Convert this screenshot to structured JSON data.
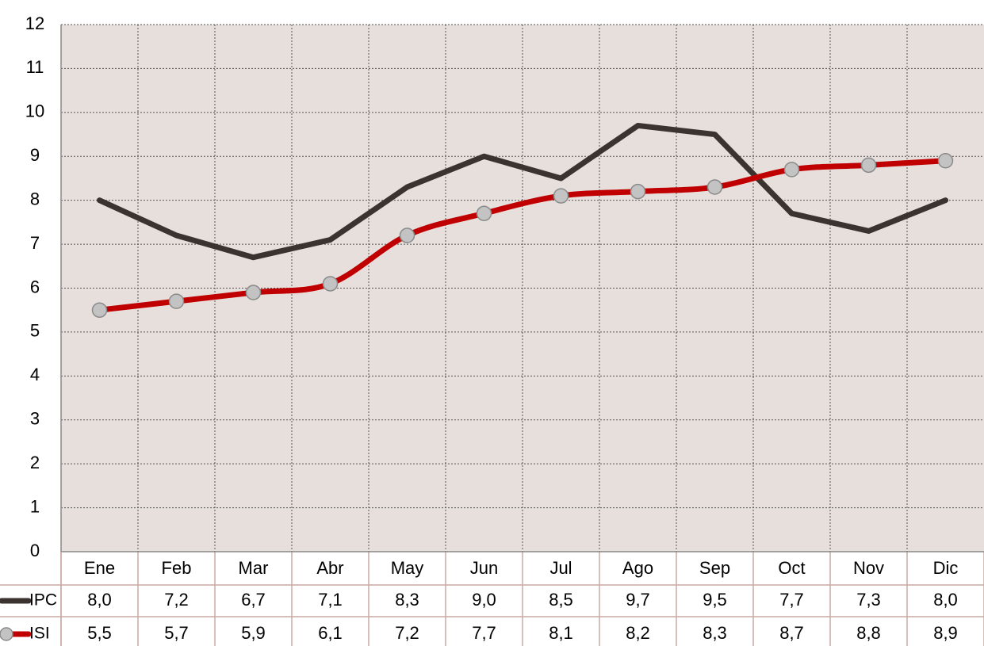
{
  "chart_data": {
    "type": "line",
    "categories": [
      "Ene",
      "Feb",
      "Mar",
      "Abr",
      "May",
      "Jun",
      "Jul",
      "Ago",
      "Sep",
      "Oct",
      "Nov",
      "Dic"
    ],
    "series": [
      {
        "name": "IPC",
        "color": "#3b3330",
        "smooth": false,
        "values": [
          8.0,
          7.2,
          6.7,
          7.1,
          8.3,
          9.0,
          8.5,
          9.7,
          9.5,
          7.7,
          7.3,
          8.0
        ],
        "value_labels": [
          "8,0",
          "7,2",
          "6,7",
          "7,1",
          "8,3",
          "9,0",
          "8,5",
          "9,7",
          "9,5",
          "7,7",
          "7,3",
          "8,0"
        ]
      },
      {
        "name": "ISI",
        "color": "#c00000",
        "smooth": true,
        "marker_color": "#c3c3c3",
        "values": [
          5.5,
          5.7,
          5.9,
          6.1,
          7.2,
          7.7,
          8.1,
          8.2,
          8.3,
          8.7,
          8.8,
          8.9
        ],
        "value_labels": [
          "5,5",
          "5,7",
          "5,9",
          "6,1",
          "7,2",
          "7,7",
          "8,1",
          "8,2",
          "8,3",
          "8,7",
          "8,8",
          "8,9"
        ]
      }
    ],
    "ylim": [
      0,
      12
    ],
    "yticks": [
      0,
      1,
      2,
      3,
      4,
      5,
      6,
      7,
      8,
      9,
      10,
      11,
      12
    ],
    "grid": true
  }
}
